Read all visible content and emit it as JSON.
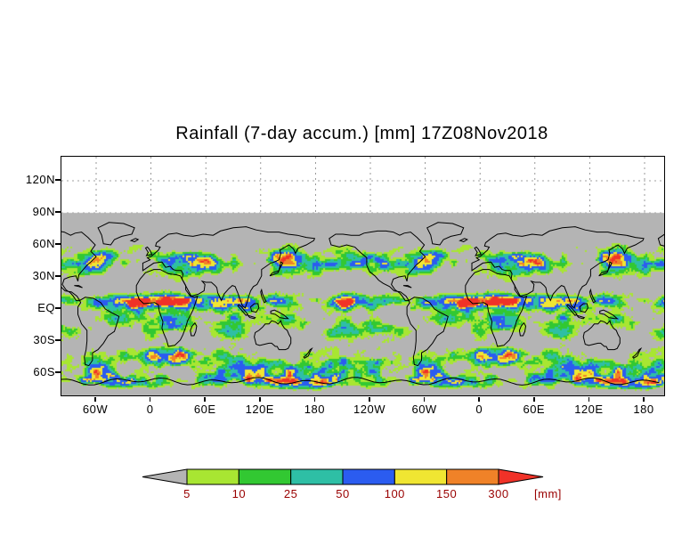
{
  "title": "Rainfall (7-day accum.) [mm] 17Z08Nov2018",
  "axes": {
    "y_labels": [
      "120N",
      "90N",
      "60N",
      "30N",
      "EQ",
      "30S",
      "60S"
    ],
    "x_labels": [
      "60W",
      "0",
      "60E",
      "120E",
      "180",
      "120W",
      "60W",
      "0",
      "60E",
      "120E",
      "180"
    ]
  },
  "colorbar": {
    "tick_labels": [
      "5",
      "10",
      "25",
      "50",
      "100",
      "150",
      "300"
    ],
    "unit_label": "[mm]",
    "label_color": "#990000",
    "arrow_left_color": "#b4b4b4",
    "segment_colors": [
      "#a8e632",
      "#32c832",
      "#2ebfa5",
      "#2b5cf0",
      "#f0e632",
      "#f08228"
    ],
    "arrow_right_color": "#f03228"
  },
  "chart_data": {
    "type": "heatmap",
    "title": "Rainfall (7-day accum.) [mm] 17Z08Nov2018",
    "valid_time": "17Z08Nov2018",
    "accumulation_period": "7-day",
    "unit": "mm",
    "projection": "global lat-lon, longitude repeated (world shown ~1.8 times)",
    "lat_ticks": [
      "120N",
      "90N",
      "60N",
      "30N",
      "EQ",
      "30S",
      "60S"
    ],
    "lon_ticks": [
      "60W",
      "0",
      "60E",
      "120E",
      "180",
      "120W",
      "60W",
      "0",
      "60E",
      "120E",
      "180"
    ],
    "color_scale": {
      "thresholds_mm": [
        5,
        10,
        25,
        50,
        100,
        150,
        300
      ],
      "bins": [
        "<5 gray",
        "5-10 yellow-green",
        "10-25 green",
        "25-50 teal",
        "50-100 blue",
        "100-150 yellow",
        "150-300 orange",
        ">300 red"
      ]
    },
    "grid": true,
    "notes": "Raster rainfall field over world map with coastlines; region above 90N blank white; sub-5mm areas gray."
  }
}
